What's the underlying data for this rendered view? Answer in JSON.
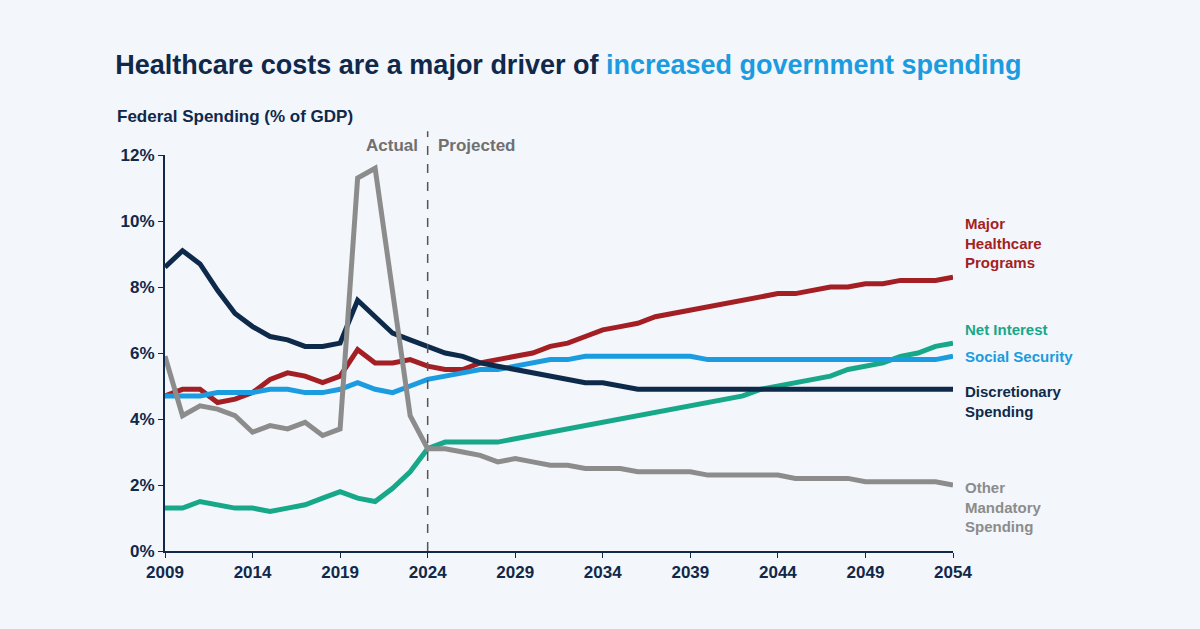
{
  "chart_data": {
    "type": "line",
    "title": "Healthcare costs are a major driver of",
    "title_highlight": "increased government spending",
    "ylabel": "Federal Spending (% of GDP)",
    "annotations": [
      {
        "text": "Actual",
        "x": 2024
      },
      {
        "text": "Projected",
        "x": 2024
      }
    ],
    "x": [
      2009,
      2010,
      2011,
      2012,
      2013,
      2014,
      2015,
      2016,
      2017,
      2018,
      2019,
      2020,
      2021,
      2022,
      2023,
      2024,
      2025,
      2026,
      2027,
      2028,
      2029,
      2030,
      2031,
      2032,
      2033,
      2034,
      2035,
      2036,
      2037,
      2038,
      2039,
      2040,
      2041,
      2042,
      2043,
      2044,
      2045,
      2046,
      2047,
      2048,
      2049,
      2050,
      2051,
      2052,
      2053,
      2054
    ],
    "xlim": [
      2009,
      2054
    ],
    "xticks": [
      2009,
      2014,
      2019,
      2024,
      2029,
      2034,
      2039,
      2044,
      2049,
      2054
    ],
    "ylim": [
      0,
      12
    ],
    "yticks": [
      {
        "value": 0,
        "label": "0%"
      },
      {
        "value": 2,
        "label": "2%"
      },
      {
        "value": 4,
        "label": "4%"
      },
      {
        "value": 6,
        "label": "6%"
      },
      {
        "value": 8,
        "label": "8%"
      },
      {
        "value": 10,
        "label": "10%"
      },
      {
        "value": 12,
        "label": "12%"
      }
    ],
    "grid": false,
    "series": [
      {
        "name": "Major\nHealthcare\nPrograms",
        "color": "#a31f24",
        "values": [
          4.7,
          4.9,
          4.9,
          4.5,
          4.6,
          4.8,
          5.2,
          5.4,
          5.3,
          5.1,
          5.3,
          6.1,
          5.7,
          5.7,
          5.8,
          5.6,
          5.5,
          5.5,
          5.7,
          5.8,
          5.9,
          6.0,
          6.2,
          6.3,
          6.5,
          6.7,
          6.8,
          6.9,
          7.1,
          7.2,
          7.3,
          7.4,
          7.5,
          7.6,
          7.7,
          7.8,
          7.8,
          7.9,
          8.0,
          8.0,
          8.1,
          8.1,
          8.2,
          8.2,
          8.2,
          8.3
        ]
      },
      {
        "name": "Net Interest",
        "color": "#17a88a",
        "values": [
          1.3,
          1.3,
          1.5,
          1.4,
          1.3,
          1.3,
          1.2,
          1.3,
          1.4,
          1.6,
          1.8,
          1.6,
          1.5,
          1.9,
          2.4,
          3.1,
          3.3,
          3.3,
          3.3,
          3.3,
          3.4,
          3.5,
          3.6,
          3.7,
          3.8,
          3.9,
          4.0,
          4.1,
          4.2,
          4.3,
          4.4,
          4.5,
          4.6,
          4.7,
          4.9,
          5.0,
          5.1,
          5.2,
          5.3,
          5.5,
          5.6,
          5.7,
          5.9,
          6.0,
          6.2,
          6.3
        ]
      },
      {
        "name": "Social Security",
        "color": "#1b9be0",
        "values": [
          4.7,
          4.7,
          4.7,
          4.8,
          4.8,
          4.8,
          4.9,
          4.9,
          4.8,
          4.8,
          4.9,
          5.1,
          4.9,
          4.8,
          5.0,
          5.2,
          5.3,
          5.4,
          5.5,
          5.5,
          5.6,
          5.7,
          5.8,
          5.8,
          5.9,
          5.9,
          5.9,
          5.9,
          5.9,
          5.9,
          5.9,
          5.8,
          5.8,
          5.8,
          5.8,
          5.8,
          5.8,
          5.8,
          5.8,
          5.8,
          5.8,
          5.8,
          5.8,
          5.8,
          5.8,
          5.9
        ]
      },
      {
        "name": "Discretionary\nSpending",
        "color": "#0e2a4b",
        "values": [
          8.6,
          9.1,
          8.7,
          7.9,
          7.2,
          6.8,
          6.5,
          6.4,
          6.2,
          6.2,
          6.3,
          7.6,
          7.1,
          6.6,
          6.4,
          6.2,
          6.0,
          5.9,
          5.7,
          5.6,
          5.5,
          5.4,
          5.3,
          5.2,
          5.1,
          5.1,
          5.0,
          4.9,
          4.9,
          4.9,
          4.9,
          4.9,
          4.9,
          4.9,
          4.9,
          4.9,
          4.9,
          4.9,
          4.9,
          4.9,
          4.9,
          4.9,
          4.9,
          4.9,
          4.9,
          4.9
        ]
      },
      {
        "name": "Other\nMandatory\nSpending",
        "color": "#8c8c8c",
        "values": [
          5.9,
          4.1,
          4.4,
          4.3,
          4.1,
          3.6,
          3.8,
          3.7,
          3.9,
          3.5,
          3.7,
          11.3,
          11.6,
          7.8,
          4.1,
          3.1,
          3.1,
          3.0,
          2.9,
          2.7,
          2.8,
          2.7,
          2.6,
          2.6,
          2.5,
          2.5,
          2.5,
          2.4,
          2.4,
          2.4,
          2.4,
          2.3,
          2.3,
          2.3,
          2.3,
          2.3,
          2.2,
          2.2,
          2.2,
          2.2,
          2.1,
          2.1,
          2.1,
          2.1,
          2.1,
          2.0
        ]
      }
    ]
  }
}
